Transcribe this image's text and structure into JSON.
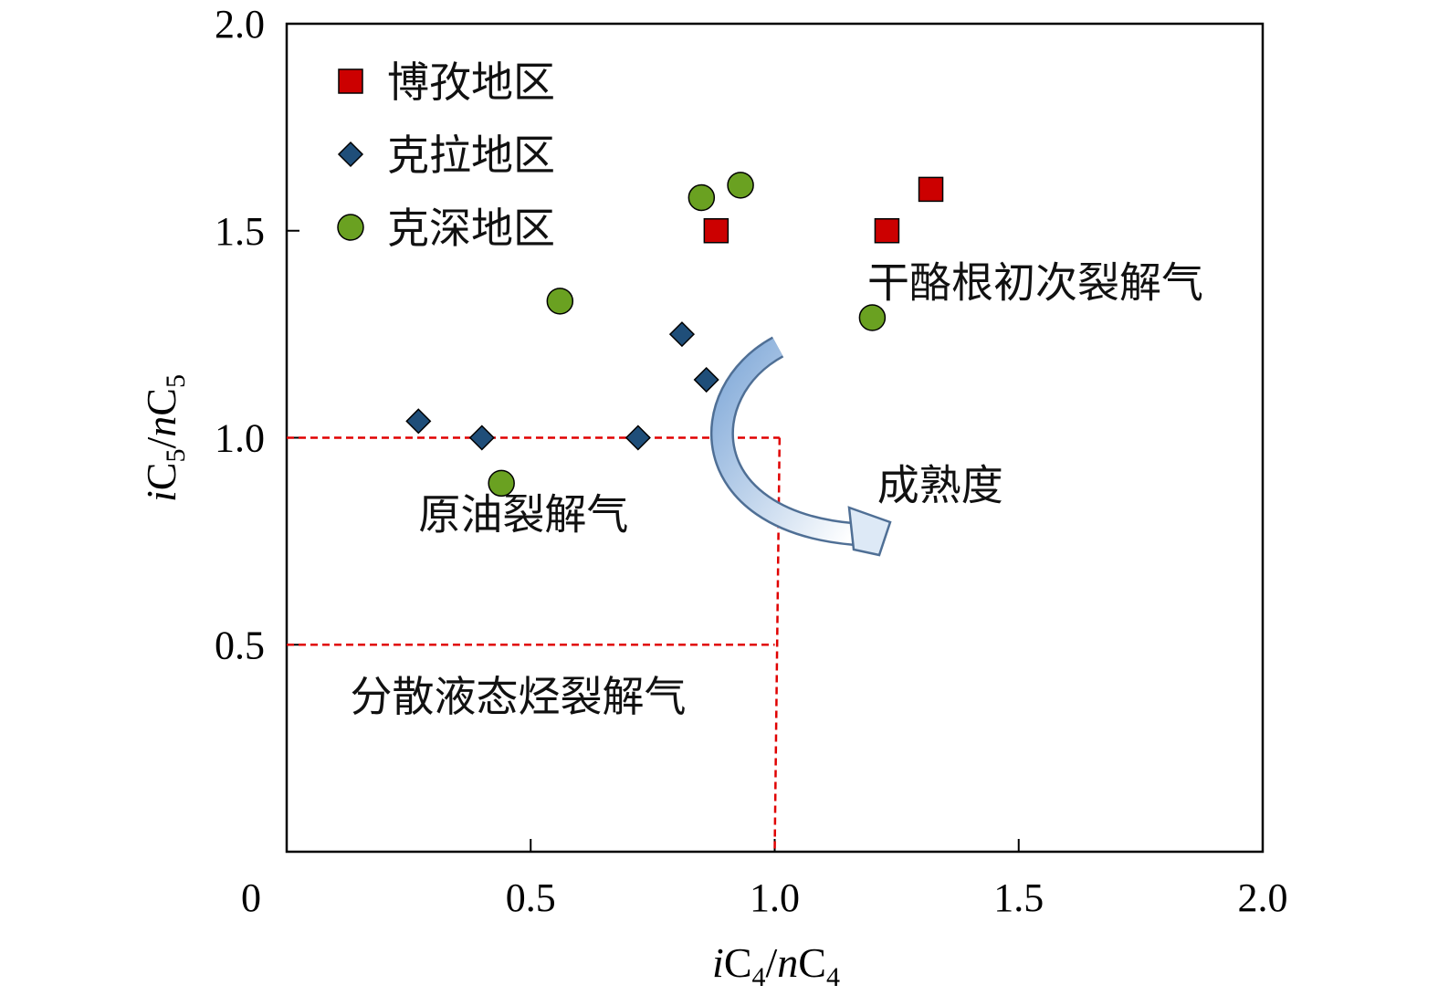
{
  "chart_data": {
    "type": "scatter",
    "xlabel_parts": [
      {
        "t": "i",
        "style": "italic"
      },
      {
        "t": "C",
        "style": "normal"
      },
      {
        "t": "4",
        "style": "sub"
      },
      {
        "t": "/",
        "style": "normal"
      },
      {
        "t": "n",
        "style": "italic"
      },
      {
        "t": "C",
        "style": "normal"
      },
      {
        "t": "4",
        "style": "sub"
      }
    ],
    "ylabel_parts": [
      {
        "t": "i",
        "style": "italic"
      },
      {
        "t": "C",
        "style": "normal"
      },
      {
        "t": "5",
        "style": "sub"
      },
      {
        "t": "/",
        "style": "normal"
      },
      {
        "t": "n",
        "style": "italic"
      },
      {
        "t": "C",
        "style": "normal"
      },
      {
        "t": "5",
        "style": "sub"
      }
    ],
    "xlim": [
      0,
      2.0
    ],
    "ylim": [
      0,
      2.0
    ],
    "x_ticks": [
      "0",
      "0.5",
      "1.0",
      "1.5",
      "2.0"
    ],
    "y_ticks": [
      "0.5",
      "1.0",
      "1.5",
      "2.0"
    ],
    "grid": false,
    "legend_position": "top-left",
    "series": [
      {
        "name": "博孜地区",
        "marker": "square",
        "color": "#cc0000",
        "points": [
          [
            0.88,
            1.5
          ],
          [
            1.23,
            1.5
          ],
          [
            1.32,
            1.6
          ]
        ]
      },
      {
        "name": "克拉地区",
        "marker": "diamond",
        "color": "#1f4e79",
        "points": [
          [
            0.27,
            1.04
          ],
          [
            0.4,
            1.0
          ],
          [
            0.72,
            1.0
          ],
          [
            0.81,
            1.25
          ],
          [
            0.86,
            1.14
          ]
        ]
      },
      {
        "name": "克深地区",
        "marker": "circle",
        "color": "#6aa121",
        "points": [
          [
            0.85,
            1.58
          ],
          [
            0.93,
            1.61
          ],
          [
            0.56,
            1.33
          ],
          [
            0.44,
            0.89
          ],
          [
            1.2,
            1.29
          ]
        ]
      }
    ],
    "boundaries": {
      "color": "#e00000",
      "lines": [
        [
          [
            0,
            1.0
          ],
          [
            1.01,
            1.0
          ]
        ],
        [
          [
            1.01,
            1.0
          ],
          [
            1.0,
            0
          ]
        ],
        [
          [
            0,
            0.5
          ],
          [
            1.0,
            0.5
          ]
        ]
      ]
    },
    "annotations": [
      {
        "text": "干酪根初次裂解气",
        "x": 1.19,
        "y": 1.34
      },
      {
        "text": "成熟度",
        "x": 1.21,
        "y": 0.85
      },
      {
        "text": "原油裂解气",
        "x": 0.27,
        "y": 0.78
      },
      {
        "text": "分散液态烃裂解气",
        "x": 0.13,
        "y": 0.34
      }
    ],
    "arrow": {
      "label": "成熟度",
      "gradient": [
        "#7fa8d8",
        "#ffffff"
      ]
    }
  }
}
